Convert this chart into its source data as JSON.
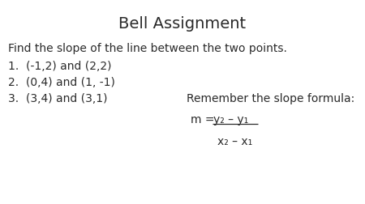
{
  "title": "Bell Assignment",
  "title_fontsize": 14,
  "title_fontweight": "normal",
  "bg_color": "#ffffff",
  "text_color": "#2a2a2a",
  "intro_text": "Find the slope of the line between the two points.",
  "problems": [
    "1.  (-1,2) and (2,2)",
    "2.  (0,4) and (1, -1)",
    "3.  (3,4) and (3,1)"
  ],
  "remember_label": "Remember the slope formula:",
  "formula_numerator": "y₂ – y₁",
  "formula_denominator": "x₂ – x₁",
  "font_size_title": 14,
  "font_size_body": 10,
  "font_size_formula": 10
}
